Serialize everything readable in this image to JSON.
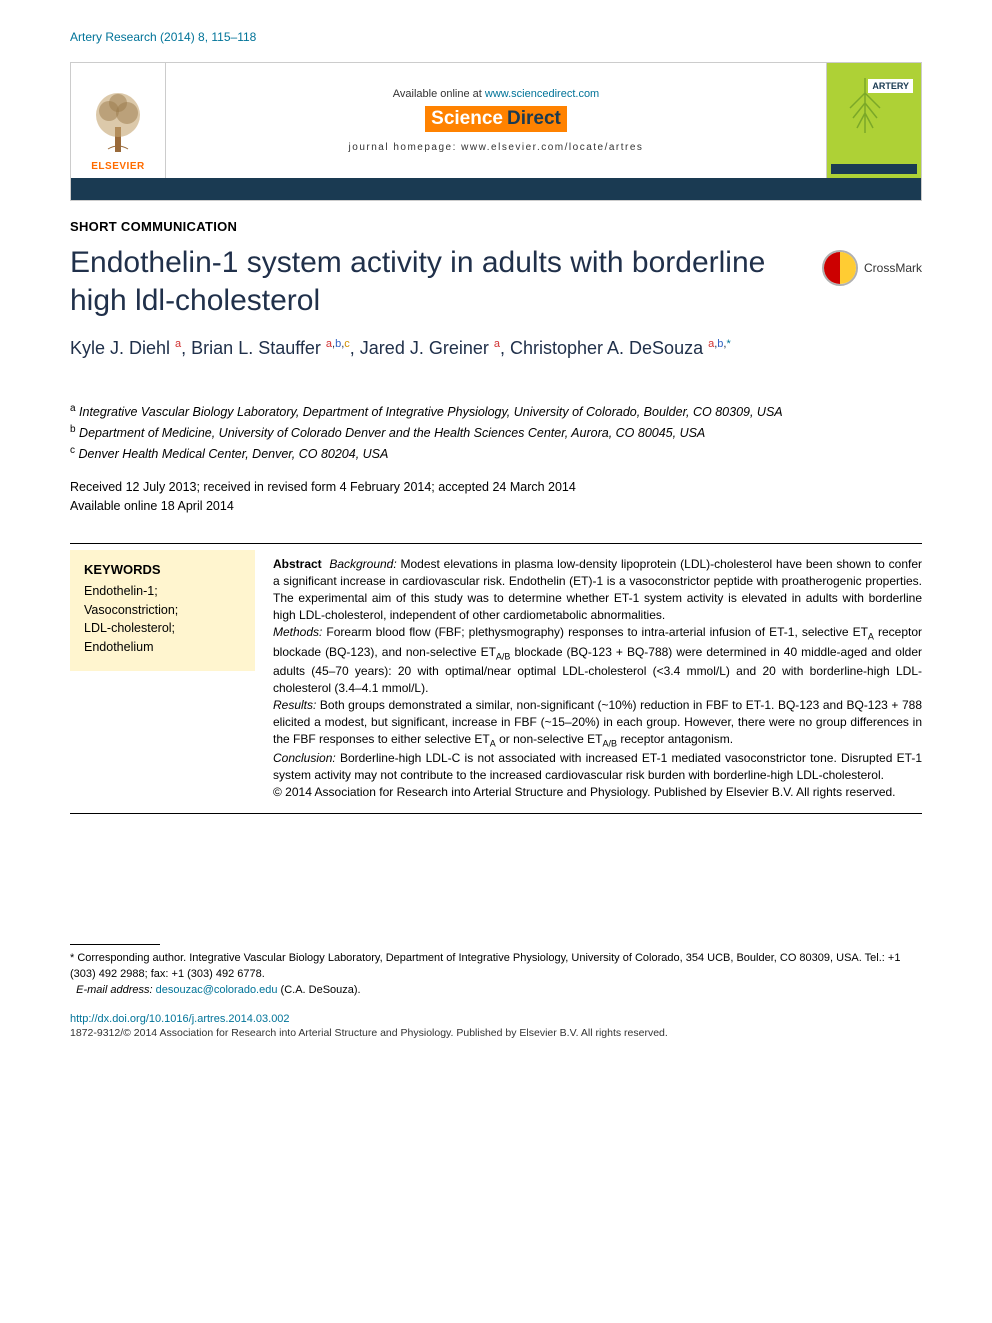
{
  "journal_ref": "Artery Research (2014) 8, 115–118",
  "header": {
    "elsevier_label": "ELSEVIER",
    "available_prefix": "Available online at ",
    "available_link": "www.sciencedirect.com",
    "scidirect_sci": "Science",
    "scidirect_dir": "Direct",
    "homepage": "journal homepage: www.elsevier.com/locate/artres",
    "cover_badge": "ARTERY"
  },
  "article_type": "SHORT COMMUNICATION",
  "title": "Endothelin-1 system activity in adults with borderline high ldl-cholesterol",
  "crossmark": "CrossMark",
  "authors_html": "Kyle J. Diehl <sup class='sup-a'>a</sup>, Brian L. Stauffer <sup class='sup-a'>a</sup><sup>,</sup><sup class='sup-b'>b</sup><sup>,</sup><sup class='sup-c'>c</sup>, Jared J. Greiner <sup class='sup-a'>a</sup>, Christopher A. DeSouza <sup class='sup-a'>a</sup><sup>,</sup><sup class='sup-b'>b</sup><sup>,</sup><sup class='sup-star'>*</sup>",
  "affiliations_html": "<sup>a</sup> Integrative Vascular Biology Laboratory, Department of Integrative Physiology, University of Colorado, Boulder, CO 80309, USA<br><sup>b</sup> Department of Medicine, University of Colorado Denver and the Health Sciences Center, Aurora, CO 80045, USA<br><sup>c</sup> Denver Health Medical Center, Denver, CO 80204, USA",
  "dates": "Received 12 July 2013; received in revised form 4 February 2014; accepted 24 March 2014\nAvailable online 18 April 2014",
  "keywords": {
    "head": "KEYWORDS",
    "items": [
      "Endothelin-1;",
      "Vasoconstriction;",
      "LDL-cholesterol;",
      "Endothelium"
    ]
  },
  "abstract_html": "<b>Abstract</b>&nbsp;&nbsp;<i>Background:</i> Modest elevations in plasma low-density lipoprotein (LDL)-cholesterol have been shown to confer a significant increase in cardiovascular risk. Endothelin (ET)-1 is a vasoconstrictor peptide with proatherogenic properties. The experimental aim of this study was to determine whether ET-1 system activity is elevated in adults with borderline high LDL-cholesterol, independent of other cardiometabolic abnormalities.<br><i>Methods:</i> Forearm blood flow (FBF; plethysmography) responses to intra-arterial infusion of ET-1, selective ET<sub>A</sub> receptor blockade (BQ-123), and non-selective ET<sub>A/B</sub> blockade (BQ-123 + BQ-788) were determined in 40 middle-aged and older adults (45–70 years): 20 with optimal/near optimal LDL-cholesterol (&lt;3.4 mmol/L) and 20 with borderline-high LDL-cholesterol (3.4–4.1 mmol/L).<br><i>Results:</i> Both groups demonstrated a similar, non-significant (~10%) reduction in FBF to ET-1. BQ-123 and BQ-123 + 788 elicited a modest, but significant, increase in FBF (~15–20%) in each group. However, there were no group differences in the FBF responses to either selective ET<sub>A</sub> or non-selective ET<sub>A/B</sub> receptor antagonism.<br><i>Conclusion:</i> Borderline-high LDL-C is not associated with increased ET-1 mediated vasoconstrictor tone. Disrupted ET-1 system activity may not contribute to the increased cardiovascular risk burden with borderline-high LDL-cholesterol.<br>© 2014 Association for Research into Arterial Structure and Physiology. Published by Elsevier B.V. All rights reserved.",
  "footnote_html": "* Corresponding author. Integrative Vascular Biology Laboratory, Department of Integrative Physiology, University of Colorado, 354 UCB, Boulder, CO 80309, USA. Tel.: +1 (303) 492 2988; fax: +1 (303) 492 6778.<br>&nbsp;&nbsp;<i>E-mail address:</i> <a href='#'>desouzac@colorado.edu</a> (C.A. DeSouza).",
  "doi": "http://dx.doi.org/10.1016/j.artres.2014.03.002",
  "copyright": "1872-9312/© 2014 Association for Research into Arterial Structure and Physiology. Published by Elsevier B.V. All rights reserved.",
  "colors": {
    "link": "#007398",
    "orange": "#ff8200",
    "darkblue": "#1a3a52",
    "title": "#20304a",
    "kw_bg": "#fff5cf",
    "cover_bg": "#aed136"
  }
}
